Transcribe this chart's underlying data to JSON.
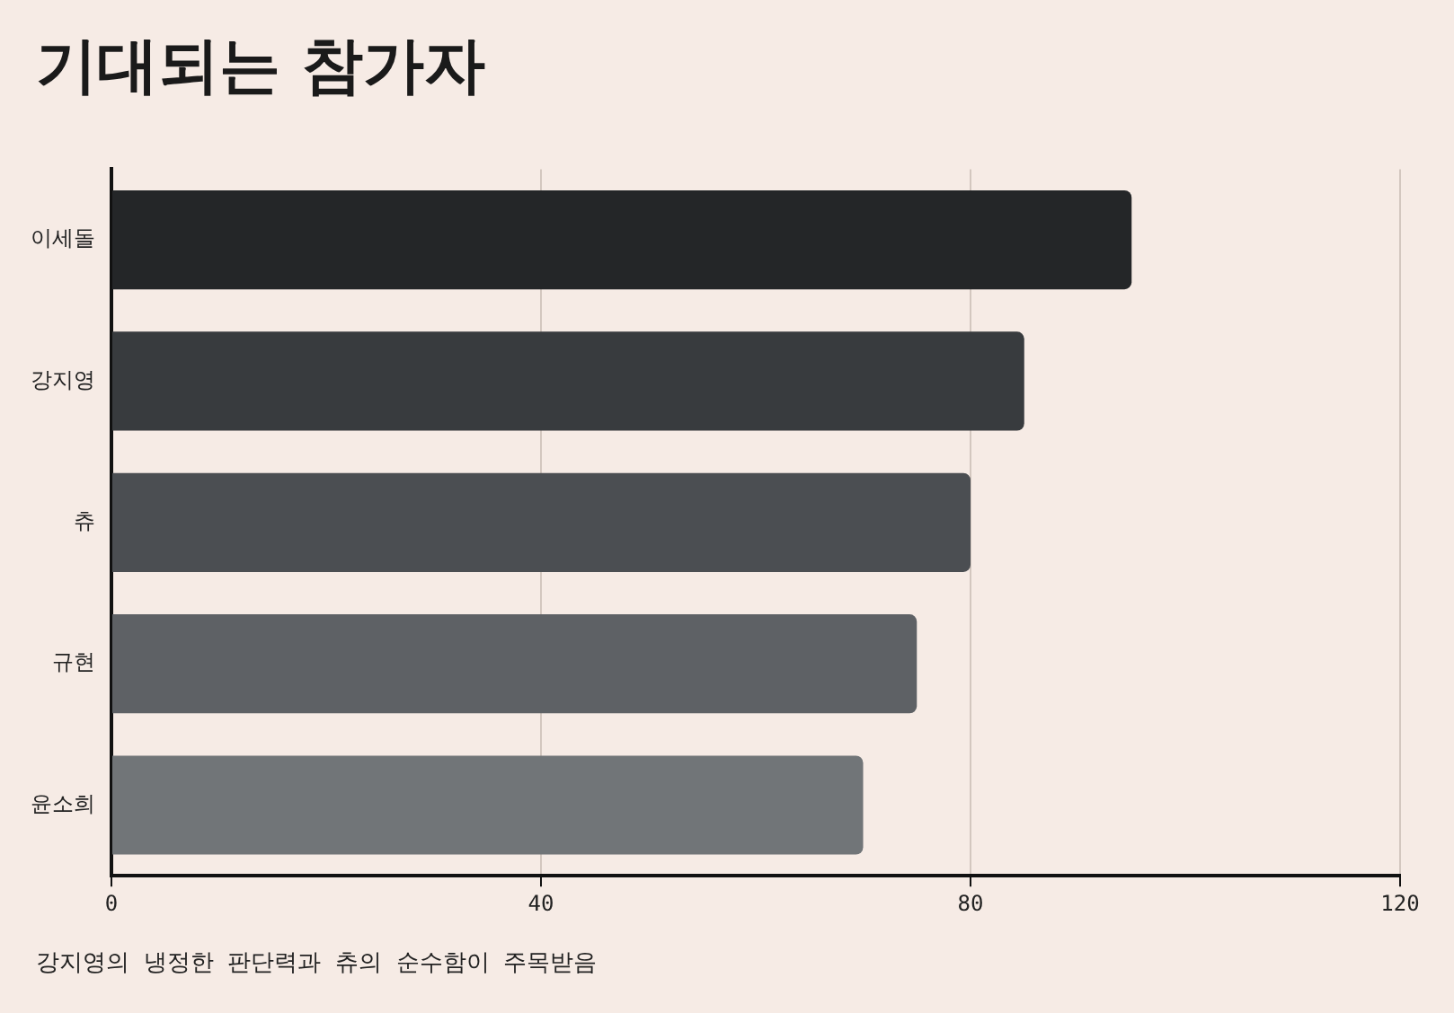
{
  "chart_data": {
    "type": "bar",
    "title": "기대되는 참가자",
    "orientation": "horizontal",
    "categories": [
      "이세돌",
      "강지영",
      "츄",
      "규현",
      "윤소희"
    ],
    "values": [
      95,
      85,
      80,
      75,
      70
    ],
    "colors": [
      "#242628",
      "#383b3e",
      "#4b4e52",
      "#5e6165",
      "#717578"
    ],
    "xlim": [
      0,
      120
    ],
    "xticks": [
      0,
      40,
      80,
      120
    ],
    "grid": "x",
    "annotations": [
      "강지영의 냉정한 판단력과 츄의 순수함이 주목받음"
    ]
  }
}
